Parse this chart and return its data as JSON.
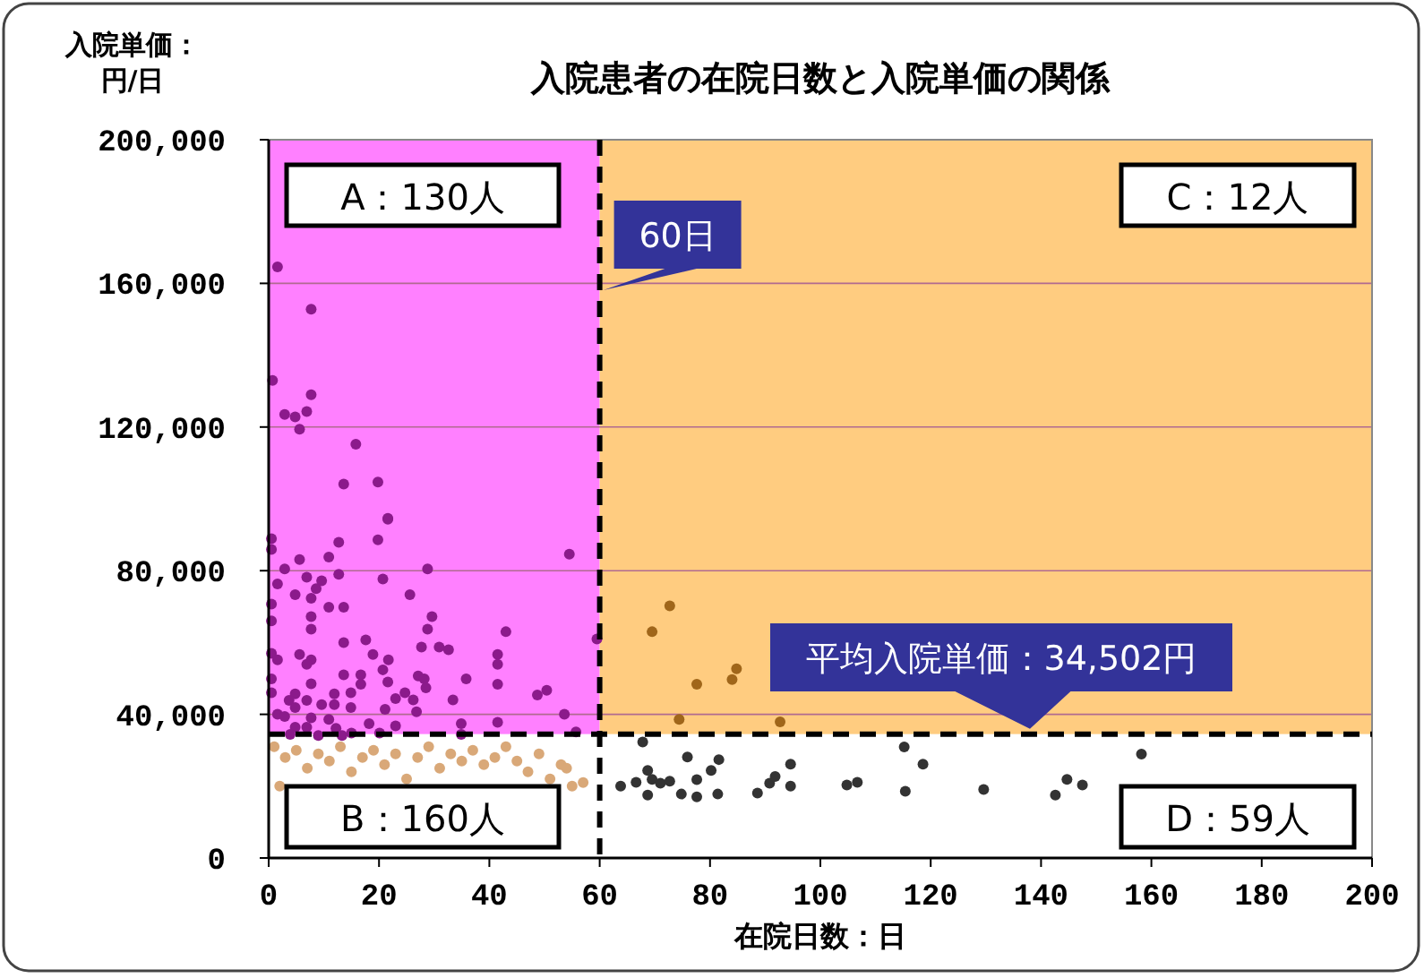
{
  "chart_data": {
    "type": "scatter",
    "title": "入院患者の在院日数と入院単価の関係",
    "xlabel": "在院日数：日",
    "ylabel": "入院単価：円/日",
    "xlim": [
      0,
      200
    ],
    "xticks": [
      0,
      20,
      40,
      60,
      80,
      100,
      120,
      140,
      160,
      180,
      200
    ],
    "ylim": [
      0,
      200000
    ],
    "yticks": [
      {
        "value": 0,
        "label": "0"
      },
      {
        "value": 40000,
        "label": "40,000"
      },
      {
        "value": 80000,
        "label": "80,000"
      },
      {
        "value": 120000,
        "label": "120,000"
      },
      {
        "value": 160000,
        "label": "160,000"
      },
      {
        "value": 200000,
        "label": "200,000"
      }
    ],
    "grid": "y",
    "marker": "circle",
    "bands": [
      {
        "axis": "x",
        "from": 0,
        "to": 60,
        "color": "#ff80ff"
      },
      {
        "axis": "x",
        "from": 60,
        "to": 200,
        "color": "#ffcc80"
      },
      {
        "axis": "y",
        "from": 0,
        "to": 34502,
        "color": "#ffffff"
      }
    ],
    "ref_lines": [
      {
        "axis": "x",
        "value": 60,
        "label": "60日",
        "line_style": "dashed",
        "color": "#000000"
      },
      {
        "axis": "y",
        "value": 34502,
        "label": "平均入院単価：34,502円",
        "line_style": "dashed",
        "color": "#000000"
      }
    ],
    "annotations": [
      "A：130人",
      "B：160人",
      "C：12人",
      "D：59人"
    ],
    "series": [
      {
        "color": "#8b1a8b",
        "x": [
          1.6,
          7.7,
          0.7,
          7.7,
          2.9,
          4.8,
          6.9,
          5.6,
          15.8,
          13.6,
          19.8,
          21.6,
          21.6,
          0.5,
          0.5,
          12.7,
          19.8,
          5.6,
          10.9,
          2.9,
          54.5,
          28.8,
          6.9,
          12.7,
          9.6,
          20.7,
          1.6,
          8.6,
          4.8,
          7.7,
          25.6,
          0.5,
          10.9,
          13.6,
          29.6,
          7.7,
          0.5,
          28.8,
          7.7,
          43,
          17.6,
          13.6,
          27.7,
          30.9,
          32.6,
          0.5,
          5.6,
          18.9,
          41.5,
          59.5,
          1.6,
          7.7,
          21.7,
          6.9,
          41.5,
          20.7,
          13.6,
          16.7,
          27.1,
          0.5,
          35.8,
          28.2,
          21.6,
          7.7,
          16.7,
          41.5,
          28.5,
          0.5,
          4.8,
          11.9,
          14.9,
          24.7,
          50.4,
          48.7,
          23,
          26.2,
          33.4,
          3.7,
          6.9,
          9.6,
          11.9,
          4.8,
          14.9,
          21.1,
          26.8,
          53.6,
          1.6,
          2.9,
          7.7,
          10.9,
          18.2,
          34.9,
          41.5,
          23,
          4.8,
          6.9,
          12.2,
          15,
          34.9,
          55.7,
          3.9,
          9,
          13.3,
          20.1
        ],
        "values": [
          164600,
          152800,
          133000,
          129000,
          123500,
          122800,
          124300,
          119400,
          115200,
          104100,
          104700,
          94600,
          94300,
          88900,
          85900,
          87900,
          88600,
          83100,
          83800,
          80500,
          84600,
          80500,
          78200,
          79000,
          77200,
          77700,
          76300,
          75000,
          73300,
          72300,
          73300,
          70700,
          69800,
          69800,
          67200,
          67200,
          66000,
          63700,
          63700,
          63000,
          60700,
          60000,
          58700,
          58700,
          58000,
          57000,
          56700,
          56700,
          56700,
          61000,
          55200,
          55200,
          55200,
          53900,
          53900,
          52400,
          51000,
          51000,
          50700,
          49900,
          49900,
          49900,
          49000,
          48500,
          48400,
          48400,
          47400,
          46000,
          45700,
          45700,
          46000,
          46000,
          46700,
          45400,
          44400,
          44000,
          44000,
          43900,
          43900,
          42700,
          42700,
          41900,
          41900,
          41400,
          40700,
          40000,
          40000,
          39400,
          39000,
          38600,
          37400,
          37400,
          37800,
          36800,
          36400,
          36400,
          36100,
          34800,
          34400,
          35100,
          34400,
          34100,
          34100,
          34800
        ]
      },
      {
        "color": "#d9a878",
        "x": [
          1,
          3,
          5,
          7,
          9,
          11,
          13,
          15,
          17,
          19,
          21,
          23,
          25,
          27,
          29,
          31,
          33,
          35,
          37,
          39,
          41,
          43,
          45,
          47,
          49,
          51,
          53,
          55,
          57,
          54,
          2
        ],
        "values": [
          31000,
          28000,
          30000,
          25000,
          29000,
          27000,
          31000,
          24000,
          28000,
          30000,
          26000,
          29000,
          22000,
          28000,
          31000,
          25000,
          29000,
          27000,
          30000,
          26000,
          28000,
          31000,
          27000,
          24000,
          29000,
          22000,
          26000,
          20000,
          21000,
          25000,
          20000
        ]
      },
      {
        "color": "#a0661a",
        "x": [
          72.7,
          69.5,
          77.6,
          84,
          84.8,
          74.4,
          92.7
        ],
        "values": [
          70200,
          63000,
          48400,
          49700,
          52700,
          38600,
          37900
        ]
      },
      {
        "color": "#333333",
        "x": [
          67.8,
          115.2,
          158.2,
          63.8,
          66.6,
          68.7,
          69.5,
          68.7,
          71,
          72.7,
          74.8,
          75.9,
          77.6,
          77.6,
          80.2,
          81.6,
          81.4,
          88.6,
          90.8,
          91.8,
          94.6,
          94.6,
          104.8,
          106.7,
          115.4,
          118.6,
          129.6,
          142.6,
          144.7,
          147.5
        ],
        "values": [
          32300,
          30900,
          28900,
          20000,
          21100,
          24400,
          21900,
          17500,
          20800,
          21400,
          17800,
          28100,
          21800,
          17000,
          24400,
          27400,
          17800,
          18100,
          20800,
          22700,
          26100,
          20000,
          20300,
          21100,
          18600,
          26100,
          19100,
          17500,
          21900,
          20300
        ]
      }
    ]
  }
}
